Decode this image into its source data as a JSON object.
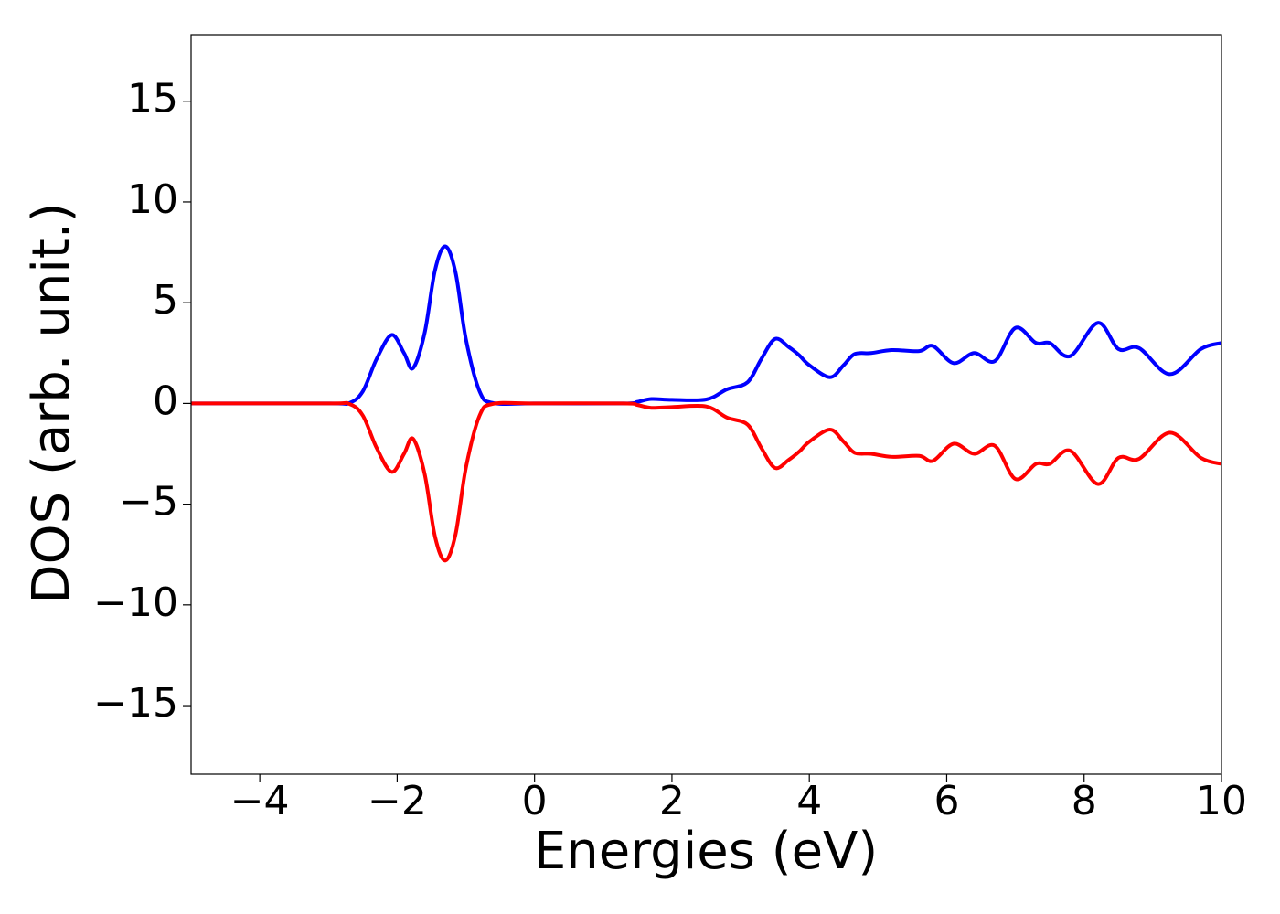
{
  "chart_data": {
    "type": "line",
    "xlabel": "Energies (eV)",
    "ylabel": "DOS (arb. unit.)",
    "x": [
      -5,
      -3,
      -2.7,
      -2.5,
      -2.3,
      -2.08,
      -1.9,
      -1.77,
      -1.6,
      -1.45,
      -1.3,
      -1.15,
      -1.0,
      -0.8,
      -0.6,
      0,
      1.3,
      1.5,
      1.7,
      2.0,
      2.5,
      2.8,
      3.1,
      3.3,
      3.5,
      3.7,
      3.85,
      4.0,
      4.3,
      4.5,
      4.66,
      4.9,
      5.2,
      5.6,
      5.8,
      6.1,
      6.4,
      6.7,
      7.0,
      7.3,
      7.5,
      7.8,
      8.2,
      8.5,
      8.8,
      9.25,
      9.7,
      10
    ],
    "series": [
      {
        "color": "#0000ff",
        "values": [
          0,
          0,
          0.02,
          0.6,
          2.2,
          3.4,
          2.5,
          1.75,
          3.5,
          6.6,
          7.8,
          6.5,
          3.2,
          0.6,
          0.02,
          0,
          0,
          0.08,
          0.22,
          0.18,
          0.2,
          0.7,
          1.05,
          2.2,
          3.2,
          2.8,
          2.4,
          1.9,
          1.3,
          1.9,
          2.45,
          2.5,
          2.65,
          2.6,
          2.85,
          2.0,
          2.5,
          2.1,
          3.75,
          3.0,
          3.0,
          2.35,
          4.0,
          2.7,
          2.75,
          1.45,
          2.7,
          3.0
        ]
      },
      {
        "color": "#ff0000",
        "values": [
          0,
          0,
          -0.02,
          -0.6,
          -2.2,
          -3.4,
          -2.5,
          -1.75,
          -3.5,
          -6.6,
          -7.8,
          -6.5,
          -3.2,
          -0.6,
          -0.02,
          0,
          0,
          -0.08,
          -0.22,
          -0.18,
          -0.15,
          -0.7,
          -1.05,
          -2.2,
          -3.2,
          -2.8,
          -2.4,
          -1.9,
          -1.3,
          -1.9,
          -2.45,
          -2.5,
          -2.65,
          -2.6,
          -2.85,
          -2.0,
          -2.5,
          -2.1,
          -3.75,
          -3.0,
          -3.0,
          -2.35,
          -4.0,
          -2.7,
          -2.75,
          -1.45,
          -2.7,
          -3.0
        ]
      }
    ],
    "xlim": [
      -5,
      10
    ],
    "ylim": [
      -18.4,
      18.3
    ],
    "xticks": [
      {
        "value": -4,
        "label": "−4"
      },
      {
        "value": -2,
        "label": "−2"
      },
      0,
      2,
      4,
      6,
      8,
      10
    ],
    "yticks": [
      {
        "value": -15,
        "label": "−15"
      },
      {
        "value": -10,
        "label": "−10"
      },
      {
        "value": -5,
        "label": "−5"
      },
      0,
      5,
      10,
      15
    ],
    "grid": false
  }
}
